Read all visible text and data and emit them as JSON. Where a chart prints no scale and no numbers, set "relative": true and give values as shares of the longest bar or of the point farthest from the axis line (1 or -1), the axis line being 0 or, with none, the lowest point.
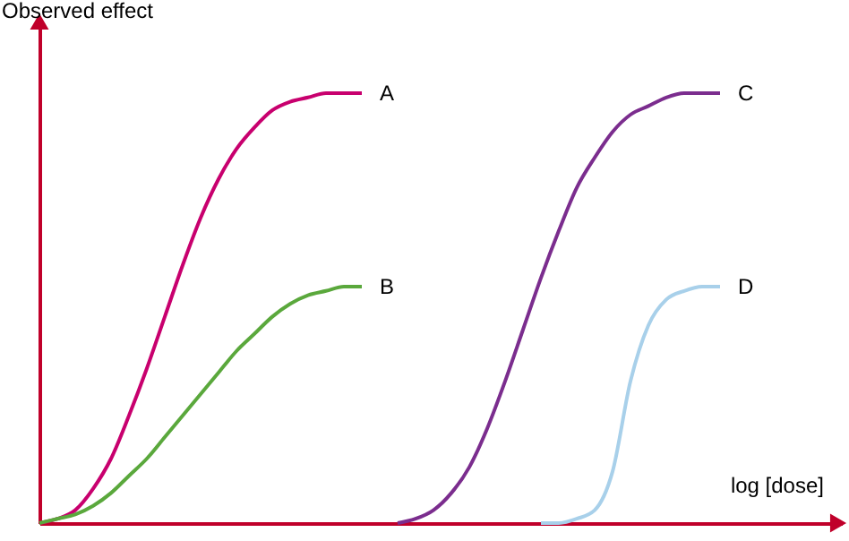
{
  "chart_data": {
    "type": "line",
    "relative": true,
    "xlabel": "log [dose]",
    "ylabel": "Observed effect",
    "legend": false,
    "grid": false,
    "marker": "none",
    "line_style": "solid",
    "categories": [
      null,
      null,
      null,
      null,
      null,
      null,
      null,
      null,
      null,
      null,
      null,
      null,
      null,
      null,
      null,
      null,
      null,
      null,
      null,
      null,
      null,
      null,
      null,
      null,
      null,
      null,
      null,
      null,
      null,
      null,
      null,
      null,
      null,
      null,
      null,
      null,
      null,
      null,
      null,
      null,
      null,
      null,
      null,
      null,
      null
    ],
    "series": [
      {
        "name": "A",
        "color": "#c8006e",
        "values": [
          0,
          0.01,
          0.03,
          0.08,
          0.15,
          0.25,
          0.36,
          0.48,
          0.6,
          0.71,
          0.8,
          0.87,
          0.92,
          0.96,
          0.98,
          0.99,
          1,
          1,
          1,
          null,
          null,
          null,
          null,
          null,
          null,
          null,
          null,
          null,
          null,
          null,
          null,
          null,
          null,
          null,
          null,
          null,
          null,
          null,
          null,
          null,
          null,
          null,
          null,
          null,
          null
        ]
      },
      {
        "name": "B",
        "color": "#5aa83c",
        "values": [
          0,
          0.01,
          0.02,
          0.04,
          0.07,
          0.11,
          0.15,
          0.2,
          0.25,
          0.3,
          0.35,
          0.4,
          0.44,
          0.48,
          0.51,
          0.53,
          0.54,
          0.55,
          0.55,
          null,
          null,
          null,
          null,
          null,
          null,
          null,
          null,
          null,
          null,
          null,
          null,
          null,
          null,
          null,
          null,
          null,
          null,
          null,
          null,
          null,
          null,
          null,
          null,
          null,
          null
        ]
      },
      {
        "name": "C",
        "color": "#7b2d8e",
        "values": [
          null,
          null,
          null,
          null,
          null,
          null,
          null,
          null,
          null,
          null,
          null,
          null,
          null,
          null,
          null,
          null,
          null,
          null,
          null,
          null,
          0,
          0.01,
          0.03,
          0.07,
          0.13,
          0.22,
          0.33,
          0.45,
          0.57,
          0.68,
          0.78,
          0.85,
          0.91,
          0.95,
          0.97,
          0.99,
          1,
          1,
          1,
          null,
          null,
          null,
          null,
          null,
          null
        ]
      },
      {
        "name": "D",
        "color": "#a8d0ea",
        "values": [
          null,
          null,
          null,
          null,
          null,
          null,
          null,
          null,
          null,
          null,
          null,
          null,
          null,
          null,
          null,
          null,
          null,
          null,
          null,
          null,
          null,
          null,
          null,
          null,
          null,
          null,
          null,
          null,
          0,
          0,
          0.01,
          0.03,
          0.12,
          0.33,
          0.46,
          0.52,
          0.54,
          0.55,
          0.55,
          null,
          null,
          null,
          null,
          null,
          null
        ]
      }
    ]
  }
}
